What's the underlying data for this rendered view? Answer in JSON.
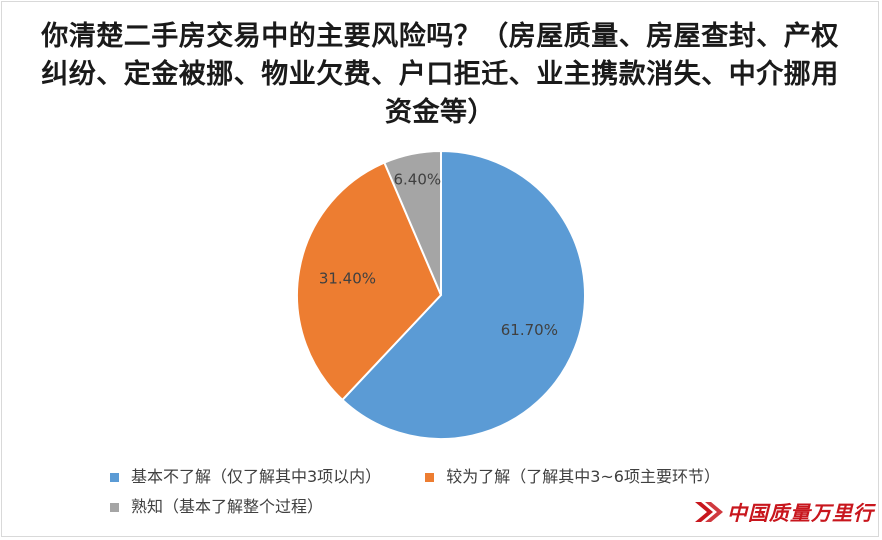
{
  "title": "你清楚二手房交易中的主要风险吗？（房屋质量、房屋查封、产权纠纷、定金被挪、物业欠费、户口拒迁、业主携款消失、中介挪用资金等）",
  "chart_data": {
    "type": "pie",
    "title": "你清楚二手房交易中的主要风险吗？（房屋质量、房屋查封、产权纠纷、定金被挪、物业欠费、户口拒迁、业主携款消失、中介挪用资金等）",
    "slices": [
      {
        "label": "基本不了解（仅了解其中3项以内）",
        "value": 61.7,
        "display": "61.70%",
        "color": "#5b9bd5"
      },
      {
        "label": "较为了解（了解其中3~6项主要环节）",
        "value": 31.4,
        "display": "31.40%",
        "color": "#ed7d31"
      },
      {
        "label": "熟知（基本了解整个过程）",
        "value": 6.4,
        "display": "6.40%",
        "color": "#a5a5a5"
      }
    ],
    "legend_position": "bottom"
  },
  "watermark": {
    "text": "中国质量万里行",
    "color": "#c8161d"
  }
}
